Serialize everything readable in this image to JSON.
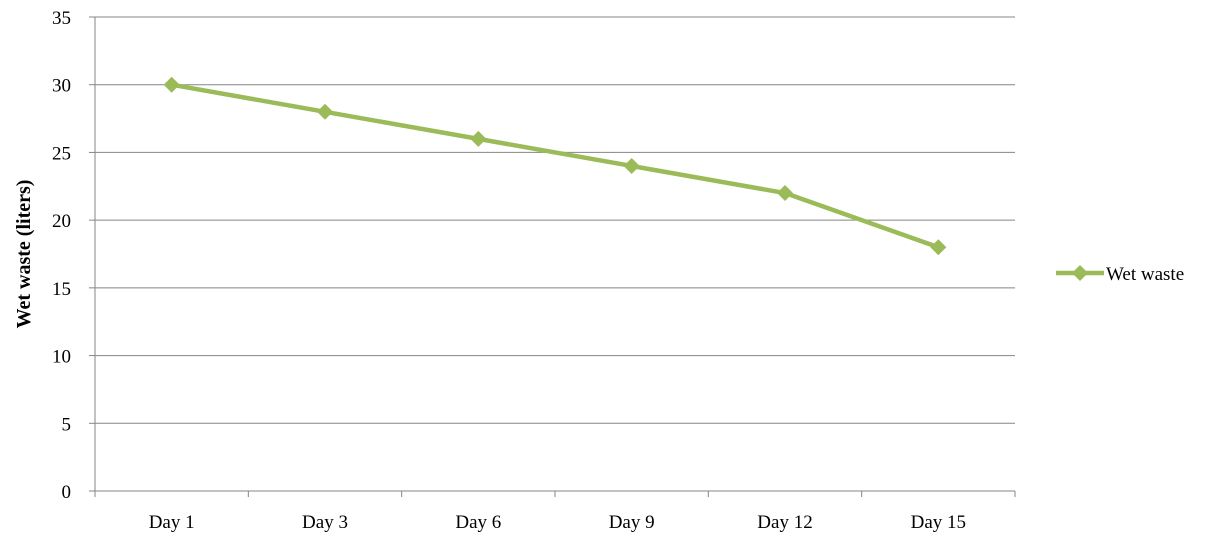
{
  "chart_data": {
    "type": "line",
    "title": "",
    "xlabel": "",
    "ylabel": "Wet waste (liters)",
    "categories": [
      "Day 1",
      "Day 3",
      "Day 6",
      "Day 9",
      "Day 12",
      "Day 15"
    ],
    "series": [
      {
        "name": "Wet waste",
        "values": [
          30,
          28,
          26,
          24,
          22,
          18
        ]
      }
    ],
    "ylim": [
      0,
      35
    ],
    "yticks": [
      "0",
      "5",
      "10",
      "15",
      "20",
      "25",
      "30",
      "35"
    ],
    "grid": true,
    "legend_position": "right",
    "colors": {
      "series": "#9BBB59",
      "grid": "#858585"
    }
  }
}
